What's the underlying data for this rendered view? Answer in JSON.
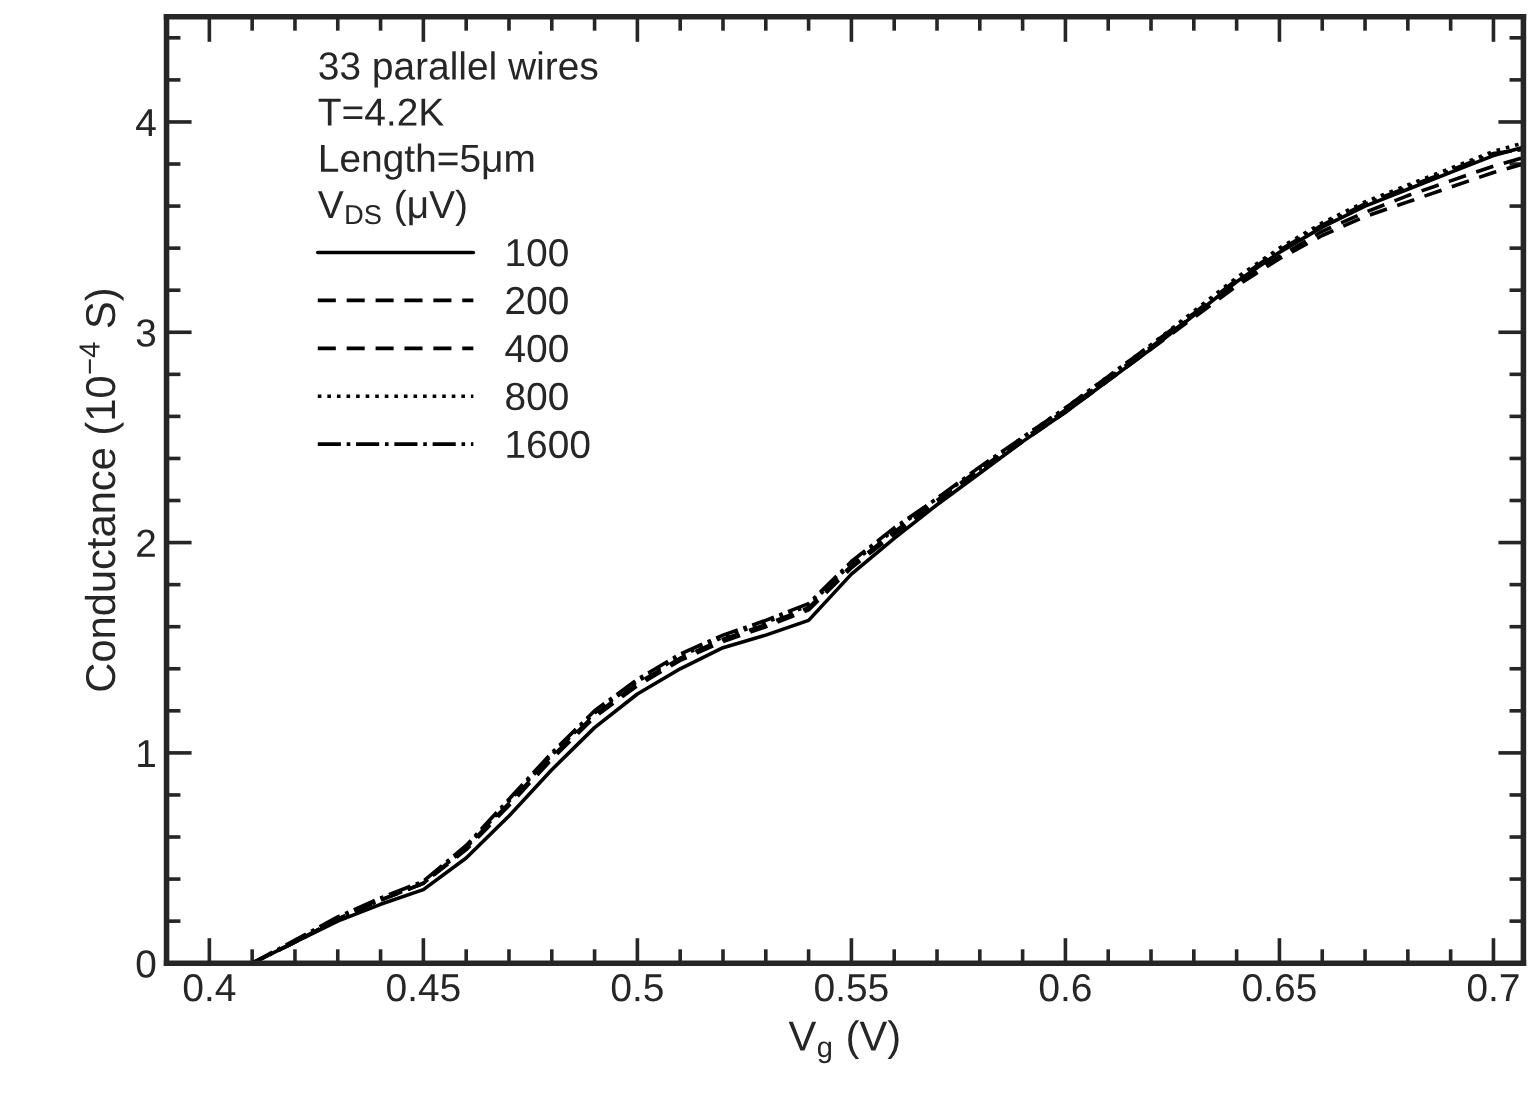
{
  "chart_data": {
    "type": "line",
    "xlabel": "V$_{g}$ (V)",
    "ylabel": "Conductance (10$^{−4}$ S)",
    "legend_title": "33 parallel wires\nT=4.2K\nLength=5μm\nV$_{DS}$ (μV)",
    "x": [
      0.41,
      0.42,
      0.43,
      0.44,
      0.45,
      0.46,
      0.47,
      0.48,
      0.49,
      0.5,
      0.51,
      0.52,
      0.53,
      0.54,
      0.55,
      0.56,
      0.57,
      0.58,
      0.59,
      0.6,
      0.61,
      0.62,
      0.63,
      0.64,
      0.65,
      0.66,
      0.67,
      0.68,
      0.69,
      0.7,
      0.707
    ],
    "series": [
      {
        "name": "100",
        "color": "#000000",
        "line_style": "solid",
        "values": [
          0,
          0.1,
          0.2,
          0.28,
          0.35,
          0.5,
          0.7,
          0.92,
          1.12,
          1.28,
          1.4,
          1.5,
          1.56,
          1.63,
          1.85,
          2.02,
          2.18,
          2.33,
          2.48,
          2.62,
          2.77,
          2.92,
          3.08,
          3.24,
          3.38,
          3.5,
          3.6,
          3.68,
          3.76,
          3.84,
          3.88
        ]
      },
      {
        "name": "200",
        "color": "#000000",
        "line_style": "dashed",
        "values": [
          0,
          0.1,
          0.21,
          0.3,
          0.38,
          0.54,
          0.75,
          0.97,
          1.17,
          1.32,
          1.44,
          1.53,
          1.6,
          1.68,
          1.88,
          2.04,
          2.19,
          2.34,
          2.48,
          2.62,
          2.77,
          2.92,
          3.07,
          3.22,
          3.35,
          3.46,
          3.55,
          3.62,
          3.69,
          3.76,
          3.8
        ]
      },
      {
        "name": "400",
        "color": "#000000",
        "line_style": "dashed",
        "values": [
          0,
          0.1,
          0.21,
          0.3,
          0.38,
          0.55,
          0.76,
          0.98,
          1.18,
          1.33,
          1.45,
          1.54,
          1.61,
          1.69,
          1.89,
          2.05,
          2.2,
          2.35,
          2.49,
          2.63,
          2.78,
          2.93,
          3.08,
          3.23,
          3.36,
          3.48,
          3.57,
          3.65,
          3.72,
          3.79,
          3.83
        ]
      },
      {
        "name": "800",
        "color": "#000000",
        "line_style": "dotted",
        "values": [
          0,
          0.1,
          0.21,
          0.3,
          0.38,
          0.55,
          0.77,
          0.99,
          1.19,
          1.34,
          1.46,
          1.55,
          1.62,
          1.7,
          1.9,
          2.06,
          2.21,
          2.35,
          2.5,
          2.64,
          2.79,
          2.94,
          3.1,
          3.26,
          3.4,
          3.52,
          3.62,
          3.7,
          3.78,
          3.86,
          3.9
        ]
      },
      {
        "name": "1600",
        "color": "#000000",
        "line_style": "dashdot",
        "values": [
          0,
          0.11,
          0.22,
          0.31,
          0.39,
          0.56,
          0.78,
          1.0,
          1.2,
          1.35,
          1.47,
          1.56,
          1.63,
          1.71,
          1.91,
          2.07,
          2.21,
          2.36,
          2.5,
          2.64,
          2.79,
          2.94,
          3.09,
          3.25,
          3.39,
          3.51,
          3.61,
          3.69,
          3.77,
          3.85,
          3.87
        ]
      }
    ],
    "xlim": [
      0.39,
      0.707
    ],
    "ylim": [
      0,
      4.5
    ],
    "xticks": [
      0.4,
      0.45,
      0.5,
      0.55,
      0.6,
      0.65,
      0.7
    ],
    "yticks": [
      0,
      1,
      2,
      3,
      4
    ],
    "grid": false,
    "legend": "top left",
    "marker": "none"
  }
}
